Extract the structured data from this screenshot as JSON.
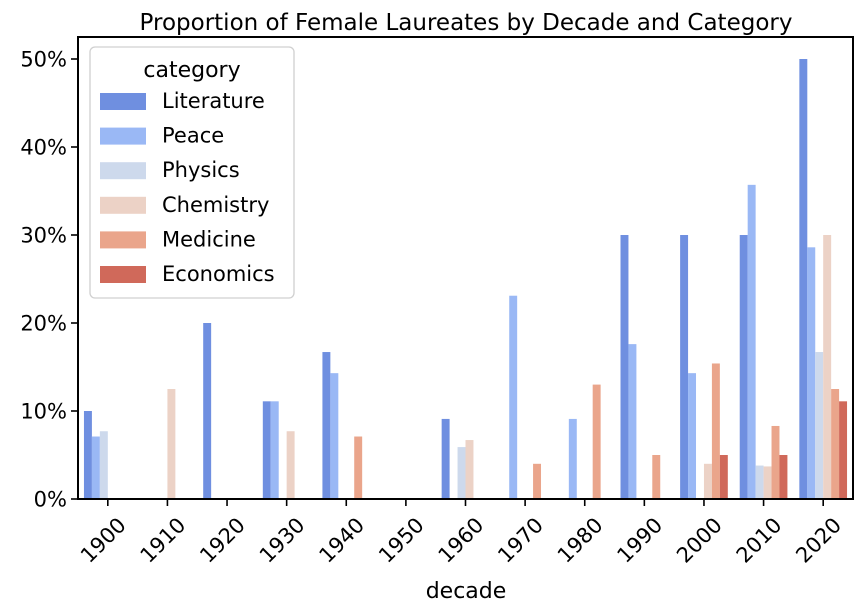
{
  "chart_data": {
    "type": "bar",
    "title": "Proportion of Female Laureates by Decade and Category",
    "xlabel": "decade",
    "ylabel": "",
    "ylim": [
      0,
      0.525
    ],
    "yticks": [
      0,
      0.1,
      0.2,
      0.3,
      0.4,
      0.5
    ],
    "ytick_labels": [
      "0%",
      "10%",
      "20%",
      "30%",
      "40%",
      "50%"
    ],
    "categories": [
      "1900",
      "1910",
      "1920",
      "1930",
      "1940",
      "1950",
      "1960",
      "1970",
      "1980",
      "1990",
      "2000",
      "2010",
      "2020"
    ],
    "legend": {
      "title": "category",
      "placement": "top-left"
    },
    "grid": false,
    "series": [
      {
        "name": "Literature",
        "color": "#6f8fe0",
        "values": [
          0.1,
          0,
          0.2,
          0.111,
          0.167,
          0,
          0.091,
          0,
          0,
          0.3,
          0.3,
          0.3,
          0.5
        ]
      },
      {
        "name": "Peace",
        "color": "#9ab8f5",
        "values": [
          0.071,
          0,
          0,
          0.111,
          0.143,
          0,
          0,
          0.231,
          0.091,
          0.176,
          0.143,
          0.357,
          0.286
        ]
      },
      {
        "name": "Physics",
        "color": "#cdd9ec",
        "values": [
          0.077,
          0,
          0,
          0,
          0,
          0,
          0.059,
          0,
          0,
          0,
          0,
          0.038,
          0.167
        ]
      },
      {
        "name": "Chemistry",
        "color": "#ecd2c6",
        "values": [
          0,
          0.125,
          0,
          0.077,
          0,
          0,
          0.067,
          0,
          0,
          0,
          0.04,
          0.037,
          0.3
        ]
      },
      {
        "name": "Medicine",
        "color": "#eaa58b",
        "values": [
          0,
          0,
          0,
          0,
          0.071,
          0,
          0,
          0.04,
          0.13,
          0.05,
          0.154,
          0.083,
          0.125
        ]
      },
      {
        "name": "Economics",
        "color": "#d0695a",
        "values": [
          0,
          0,
          0,
          0,
          0,
          0,
          0,
          0,
          0,
          0,
          0.05,
          0.05,
          0.111
        ]
      }
    ]
  }
}
